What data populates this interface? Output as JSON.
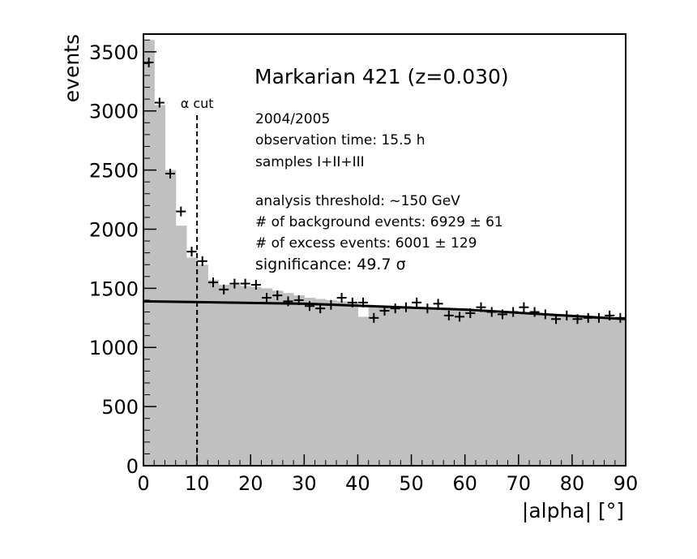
{
  "chart_data": {
    "type": "bar",
    "title": "Markarian 421 (z=0.030)",
    "xlabel": "|alpha|  [°]",
    "ylabel": "events",
    "xlim": [
      0,
      90
    ],
    "ylim": [
      0,
      3650
    ],
    "x_ticks": [
      "0",
      "10",
      "20",
      "30",
      "40",
      "50",
      "60",
      "70",
      "80",
      "90"
    ],
    "y_ticks": [
      "0",
      "500",
      "1000",
      "1500",
      "2000",
      "2500",
      "3000",
      "3500"
    ],
    "bin_width": 2,
    "bin_centers": [
      1,
      3,
      5,
      7,
      9,
      11,
      13,
      15,
      17,
      19,
      21,
      23,
      25,
      27,
      29,
      31,
      33,
      35,
      37,
      39,
      41,
      43,
      45,
      47,
      49,
      51,
      53,
      55,
      57,
      59,
      61,
      63,
      65,
      67,
      69,
      71,
      73,
      75,
      77,
      79,
      81,
      83,
      85,
      87,
      89
    ],
    "histogram_values": [
      3600,
      3050,
      2500,
      2030,
      1760,
      1700,
      1570,
      1530,
      1530,
      1520,
      1510,
      1500,
      1480,
      1460,
      1440,
      1420,
      1410,
      1400,
      1390,
      1380,
      1260,
      1350,
      1350,
      1340,
      1340,
      1330,
      1320,
      1320,
      1320,
      1310,
      1310,
      1300,
      1300,
      1290,
      1290,
      1290,
      1280,
      1270,
      1270,
      1260,
      1260,
      1250,
      1250,
      1240,
      1240
    ],
    "data_points": [
      3410,
      3070,
      2470,
      2150,
      1810,
      1730,
      1550,
      1490,
      1540,
      1540,
      1530,
      1420,
      1440,
      1390,
      1400,
      1350,
      1330,
      1360,
      1420,
      1380,
      1380,
      1250,
      1310,
      1330,
      1340,
      1380,
      1330,
      1370,
      1270,
      1260,
      1290,
      1340,
      1300,
      1280,
      1300,
      1340,
      1300,
      1280,
      1240,
      1270,
      1240,
      1250,
      1250,
      1270,
      1250
    ],
    "fit_line": [
      [
        0,
        1390
      ],
      [
        30,
        1370
      ],
      [
        60,
        1320
      ],
      [
        90,
        1240
      ]
    ],
    "cut_line_x": 10,
    "cut_label": "α cut",
    "annotations": [
      "2004/2005",
      "observation time: 15.5 h",
      "samples I+II+III",
      "analysis threshold:  ~150 GeV",
      "# of background events: 6929 ±  61",
      "# of excess events: 6001 ± 129",
      "significance: 49.7 σ"
    ],
    "colors": {
      "histogram_fill": "#c0c0c0",
      "axis": "#000000",
      "markers": "#000000",
      "fit_line": "#000000"
    },
    "grid": false
  }
}
